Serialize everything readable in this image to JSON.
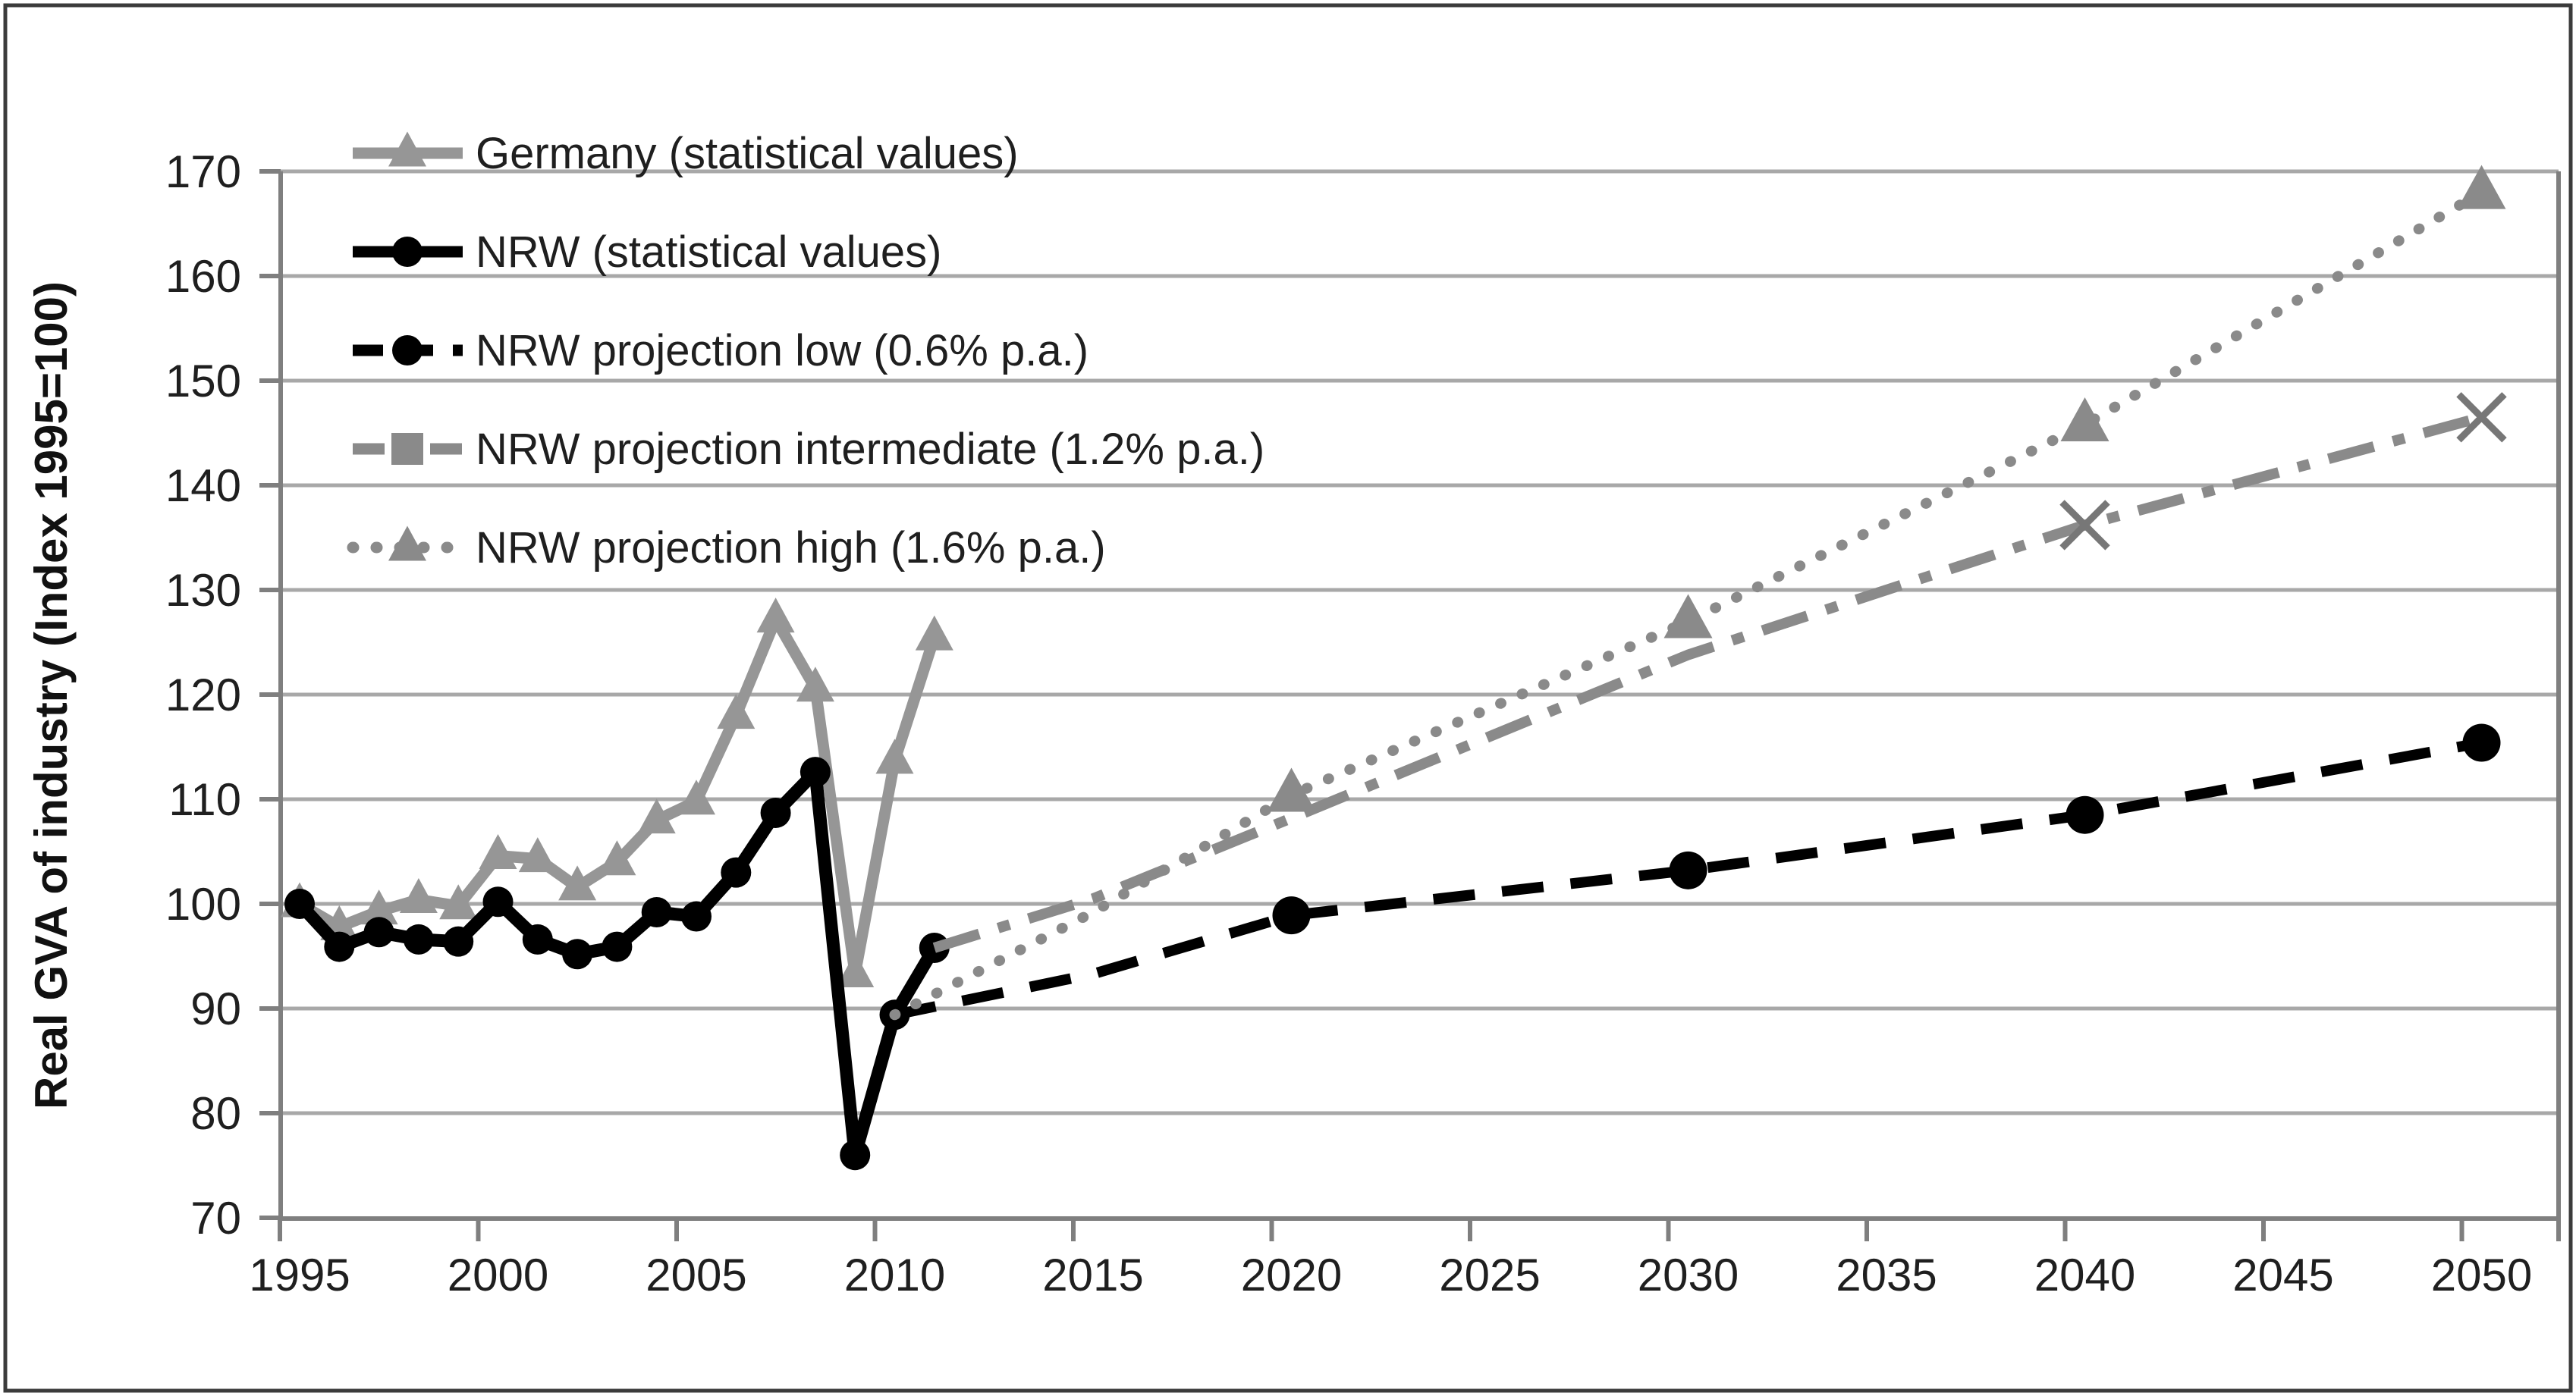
{
  "figure": {
    "background": "#ffffff",
    "border_color": "#3b3b3b",
    "text_color": "#1f1f1f",
    "grid_color": "#a8a8a8",
    "axis_color": "#7f7f7f"
  },
  "chart_data": {
    "type": "line",
    "title": "",
    "xlabel": "",
    "ylabel": "Real GVA of industry (Index 1995=100)",
    "ylim": [
      70,
      170
    ],
    "ytick_step": 10,
    "yticks": [
      70,
      80,
      90,
      100,
      110,
      120,
      130,
      140,
      150,
      160,
      170
    ],
    "xticks": [
      1995,
      2000,
      2005,
      2010,
      2015,
      2020,
      2025,
      2030,
      2035,
      2040,
      2045,
      2050
    ],
    "grid": "horizontal",
    "legend_position": "top-left-inside",
    "series": [
      {
        "name": "Germany (statistical values)",
        "color": "#969696",
        "line": "solid",
        "marker": "triangle",
        "marker_every_point": true,
        "points": [
          [
            1995,
            100
          ],
          [
            1996,
            97.8
          ],
          [
            1997,
            99.3
          ],
          [
            1998,
            100.4
          ],
          [
            1999,
            99.8
          ],
          [
            2000,
            104.6
          ],
          [
            2001,
            104.3
          ],
          [
            2002,
            101.6
          ],
          [
            2003,
            104.0
          ],
          [
            2004,
            108.0
          ],
          [
            2005,
            109.8
          ],
          [
            2006,
            118.0
          ],
          [
            2007,
            127.2
          ],
          [
            2008,
            120.6
          ],
          [
            2009,
            93.3
          ],
          [
            2010,
            113.7
          ],
          [
            2011,
            125.5
          ]
        ]
      },
      {
        "name": "NRW (statistical values)",
        "color": "#000000",
        "line": "solid",
        "marker": "circle",
        "marker_every_point": true,
        "points": [
          [
            1995,
            100
          ],
          [
            1996,
            95.9
          ],
          [
            1997,
            97.3
          ],
          [
            1998,
            96.6
          ],
          [
            1999,
            96.4
          ],
          [
            2000,
            100.2
          ],
          [
            2001,
            96.6
          ],
          [
            2002,
            95.2
          ],
          [
            2003,
            95.9
          ],
          [
            2004,
            99.2
          ],
          [
            2005,
            98.8
          ],
          [
            2006,
            103.0
          ],
          [
            2007,
            108.7
          ],
          [
            2008,
            112.6
          ],
          [
            2009,
            76.0
          ],
          [
            2010,
            89.4
          ],
          [
            2011,
            95.8
          ]
        ]
      },
      {
        "name": "NRW projection low (0.6% p.a.)",
        "color": "#000000",
        "line": "dashed",
        "marker": "circle",
        "marker_every_point": false,
        "marker_years": [
          2020,
          2030,
          2040,
          2050
        ],
        "points": [
          [
            2010,
            89.4
          ],
          [
            2015,
            93.3
          ],
          [
            2020,
            98.9
          ],
          [
            2030,
            103.2
          ],
          [
            2040,
            108.5
          ],
          [
            2050,
            115.4
          ]
        ]
      },
      {
        "name": "NRW projection intermediate (1.2% p.a.)",
        "color": "#8a8a8a",
        "line": "dashdot",
        "marker": "x",
        "legend_marker": "square",
        "marker_every_point": false,
        "marker_years": [
          2040,
          2050
        ],
        "points": [
          [
            2011,
            95.8
          ],
          [
            2015,
            100.5
          ],
          [
            2020,
            108.2
          ],
          [
            2030,
            123.8
          ],
          [
            2040,
            136.2
          ],
          [
            2050,
            146.5
          ]
        ]
      },
      {
        "name": "NRW projection high (1.6% p.a.)",
        "color": "#8a8a8a",
        "line": "dotted",
        "marker": "triangle",
        "marker_every_point": false,
        "marker_years": [
          2020,
          2030,
          2040,
          2050
        ],
        "points": [
          [
            2010,
            89.4
          ],
          [
            2015,
            99.2
          ],
          [
            2020,
            110.4
          ],
          [
            2030,
            127.0
          ],
          [
            2040,
            145.8
          ],
          [
            2050,
            168.0
          ]
        ]
      }
    ]
  }
}
